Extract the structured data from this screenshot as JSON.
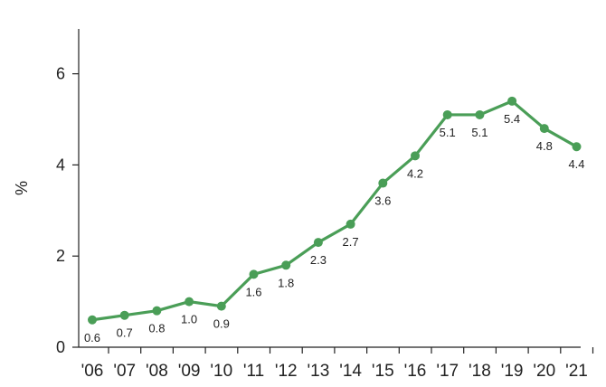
{
  "chart_data": {
    "type": "line",
    "categories": [
      "'06",
      "'07",
      "'08",
      "'09",
      "'10",
      "'11",
      "'12",
      "'13",
      "'14",
      "'15",
      "'16",
      "'17",
      "'18",
      "'19",
      "'20",
      "'21"
    ],
    "series": [
      {
        "values": [
          0.6,
          0.7,
          0.8,
          1.0,
          0.9,
          1.6,
          1.8,
          2.3,
          2.7,
          3.6,
          4.2,
          5.1,
          5.1,
          5.4,
          4.8,
          4.4
        ],
        "labels": [
          "0.6",
          "0.7",
          "0.8",
          "1.0",
          "0.9",
          "1.6",
          "1.8",
          "2.3",
          "2.7",
          "3.6",
          "4.2",
          "5.1",
          "5.1",
          "5.4",
          "4.8",
          "4.4"
        ],
        "color": "#4a9e57"
      }
    ],
    "title": "",
    "xlabel": "",
    "ylabel": "%",
    "ylim": [
      0,
      7
    ],
    "yticks": [
      0,
      2,
      4,
      6
    ],
    "ytick_labels": [
      "0",
      "2",
      "4",
      "6"
    ],
    "grid": false,
    "legend": "none"
  }
}
